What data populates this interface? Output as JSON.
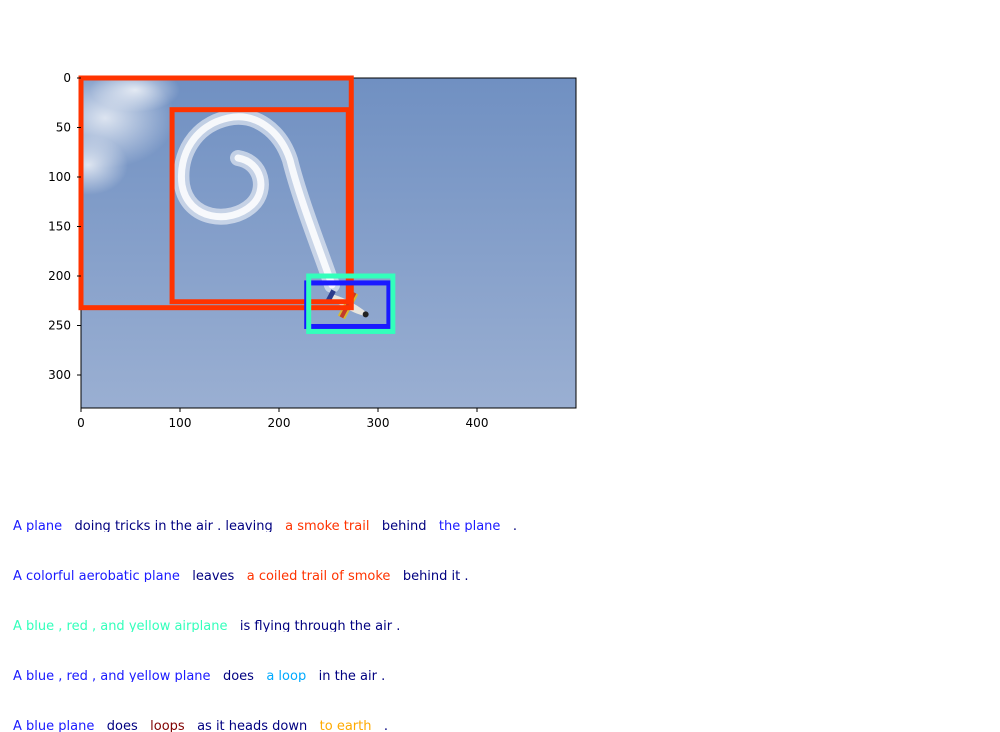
{
  "image": {
    "width": 500,
    "height": 333,
    "description_colors": {
      "sky_top": "#6f8fc0",
      "sky_bottom": "#9aaed0"
    }
  },
  "axes": {
    "x_ticks": [
      0,
      100,
      200,
      300,
      400
    ],
    "y_ticks": [
      0,
      50,
      100,
      150,
      200,
      250,
      300
    ]
  },
  "boxes": [
    {
      "name": "box-smoke-trail-outer",
      "color": "#ff3300",
      "x0": 0,
      "y0": 0,
      "x1": 273,
      "y1": 232
    },
    {
      "name": "box-coiled-smoke",
      "color": "#ff3300",
      "x0": 92,
      "y0": 32,
      "x1": 270,
      "y1": 226
    },
    {
      "name": "box-plane-blue",
      "color": "#1a1aff",
      "x0": 228,
      "y0": 207,
      "x1": 311,
      "y1": 251
    },
    {
      "name": "box-plane-cyan",
      "color": "#33ffbb",
      "x0": 230,
      "y0": 200,
      "x1": 315,
      "y1": 256
    }
  ],
  "captions": [
    [
      {
        "text": "A plane",
        "color": "#1a1aff"
      },
      {
        "text": "doing tricks in the air . leaving",
        "color": "#000080"
      },
      {
        "text": "a smoke trail",
        "color": "#ff3300"
      },
      {
        "text": "behind",
        "color": "#000080"
      },
      {
        "text": "the plane",
        "color": "#1a1aff"
      },
      {
        "text": ".",
        "color": "#000080"
      }
    ],
    [
      {
        "text": "A colorful aerobatic plane",
        "color": "#1a1aff"
      },
      {
        "text": "leaves",
        "color": "#000080"
      },
      {
        "text": "a coiled trail of smoke",
        "color": "#ff3300"
      },
      {
        "text": "behind it .",
        "color": "#000080"
      }
    ],
    [
      {
        "text": "A blue , red , and yellow airplane",
        "color": "#33ffbb"
      },
      {
        "text": "is flying through the air .",
        "color": "#000080"
      }
    ],
    [
      {
        "text": "A blue , red , and yellow plane",
        "color": "#1a1aff"
      },
      {
        "text": "does",
        "color": "#000080"
      },
      {
        "text": "a loop",
        "color": "#00aaff"
      },
      {
        "text": "in the air .",
        "color": "#000080"
      }
    ],
    [
      {
        "text": "A blue plane",
        "color": "#1a1aff"
      },
      {
        "text": "does",
        "color": "#000080"
      },
      {
        "text": "loops",
        "color": "#800000"
      },
      {
        "text": "as it heads down",
        "color": "#000080"
      },
      {
        "text": "to earth",
        "color": "#ffaa00"
      },
      {
        "text": ".",
        "color": "#000080"
      }
    ]
  ]
}
